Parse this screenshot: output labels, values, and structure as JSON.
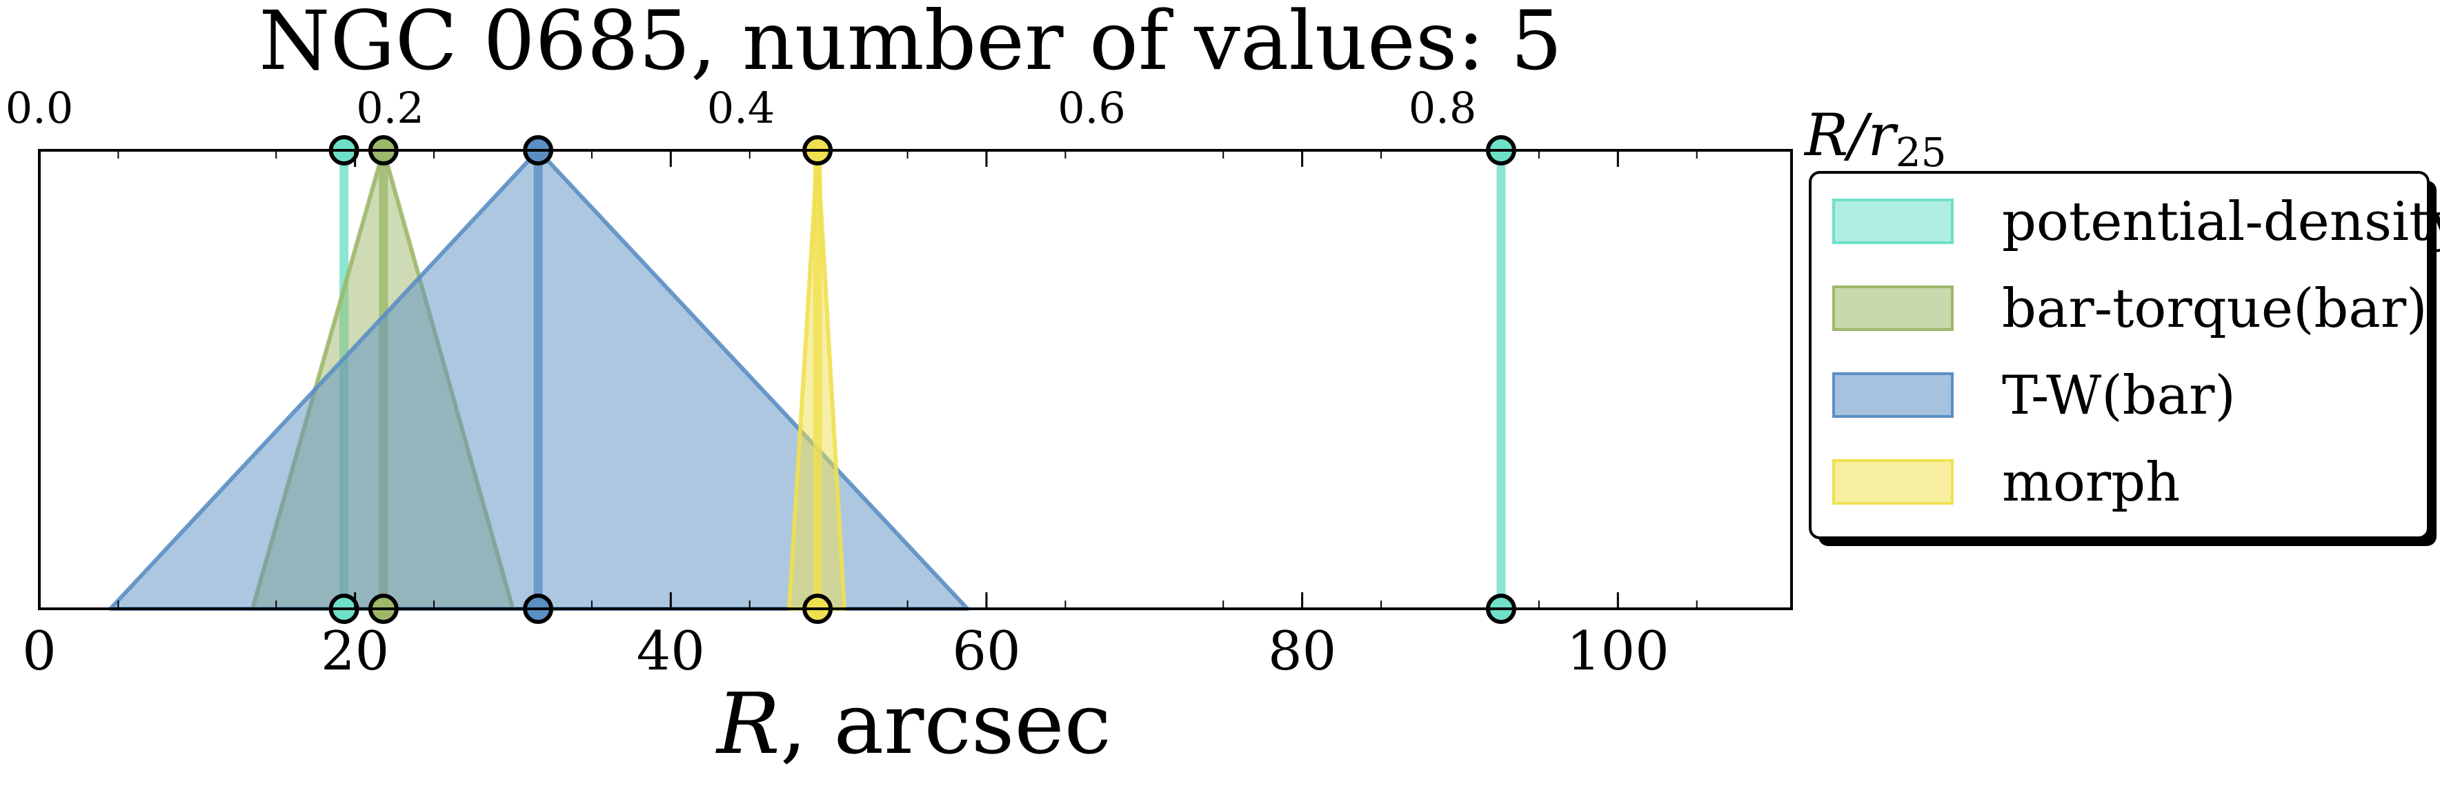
{
  "chart_data": {
    "type": "area",
    "title": "NGC 0685, number of values: 5",
    "xlabel_main": "R",
    "xlabel_rest": ", arcsec",
    "top_axis_label": "R/r25",
    "xlim": [
      0,
      111
    ],
    "ylim": [
      0,
      1
    ],
    "top_axis": {
      "unit_per_arcsec": 0.009,
      "ticks": [
        0.0,
        0.2,
        0.4,
        0.6,
        0.8
      ],
      "tick_labels": [
        "0.0",
        "0.2",
        "0.4",
        "0.6",
        "0.8"
      ]
    },
    "x_ticks": [
      0,
      20,
      40,
      60,
      80,
      100
    ],
    "x_tick_labels": [
      "0",
      "20",
      "40",
      "60",
      "80",
      "100"
    ],
    "legend_position": "outside-right",
    "series": [
      {
        "name": "potential-density",
        "color": "#6ee0c8",
        "markers": [
          {
            "x": 19.3,
            "low": 19.3,
            "high": 19.3
          },
          {
            "x": 92.6,
            "low": 92.6,
            "high": 92.6
          }
        ]
      },
      {
        "name": "bar-torque(bar)",
        "color": "#9db86a",
        "markers": [
          {
            "x": 21.8,
            "low": 13.5,
            "high": 30.0
          }
        ]
      },
      {
        "name": "T-W(bar)",
        "color": "#5b8fc4",
        "markers": [
          {
            "x": 31.6,
            "low": 4.5,
            "high": 58.8
          }
        ]
      },
      {
        "name": "morph",
        "color": "#f0e050",
        "markers": [
          {
            "x": 49.3,
            "low": 47.5,
            "high": 51.0
          }
        ]
      }
    ]
  }
}
